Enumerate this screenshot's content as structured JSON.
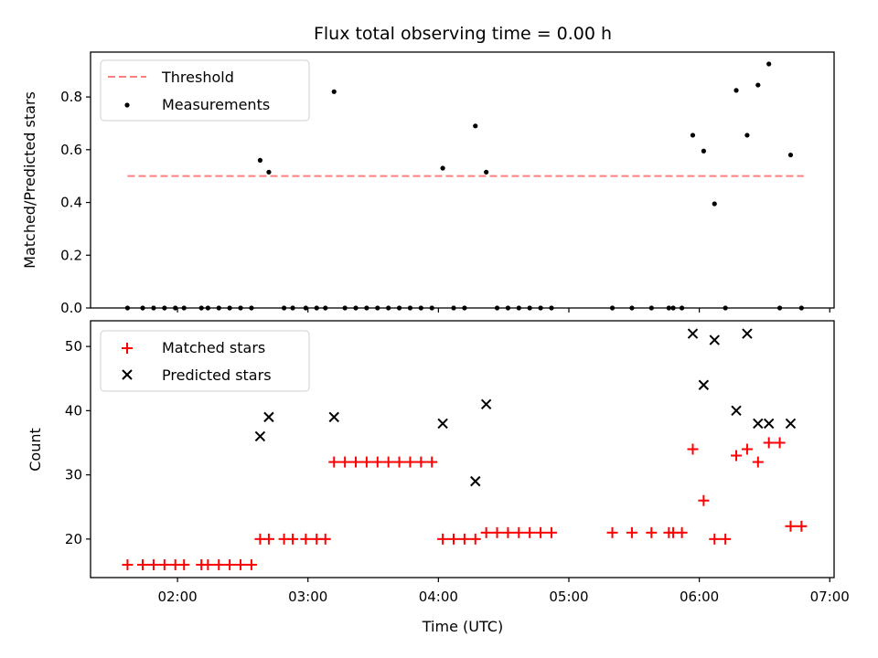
{
  "chart_data": [
    {
      "type": "scatter",
      "title": "Flux total observing time = 0.00 h",
      "ylabel": "Matched/Predicted stars",
      "xlabel": "",
      "ylim": [
        0.0,
        0.97
      ],
      "yticks": [
        "0.0",
        "0.2",
        "0.4",
        "0.6",
        "0.8"
      ],
      "legend_position": "top-left",
      "threshold": {
        "name": "Threshold",
        "value": 0.5,
        "x_range": [
          "01:37",
          "06:48"
        ],
        "color": "#ff7f7f"
      },
      "series": [
        {
          "name": "Measurements",
          "color": "#000000",
          "points": [
            {
              "x": "01:37",
              "y": 0.0
            },
            {
              "x": "01:44",
              "y": 0.0
            },
            {
              "x": "01:49",
              "y": 0.0
            },
            {
              "x": "01:54",
              "y": 0.0
            },
            {
              "x": "01:59",
              "y": 0.0
            },
            {
              "x": "02:03",
              "y": 0.0
            },
            {
              "x": "02:11",
              "y": 0.0
            },
            {
              "x": "02:14",
              "y": 0.0
            },
            {
              "x": "02:19",
              "y": 0.0
            },
            {
              "x": "02:24",
              "y": 0.0
            },
            {
              "x": "02:29",
              "y": 0.0
            },
            {
              "x": "02:34",
              "y": 0.0
            },
            {
              "x": "02:38",
              "y": 0.56
            },
            {
              "x": "02:42",
              "y": 0.515
            },
            {
              "x": "02:49",
              "y": 0.0
            },
            {
              "x": "02:53",
              "y": 0.0
            },
            {
              "x": "02:59",
              "y": 0.0
            },
            {
              "x": "03:04",
              "y": 0.0
            },
            {
              "x": "03:08",
              "y": 0.0
            },
            {
              "x": "03:12",
              "y": 0.82
            },
            {
              "x": "03:17",
              "y": 0.0
            },
            {
              "x": "03:22",
              "y": 0.0
            },
            {
              "x": "03:27",
              "y": 0.0
            },
            {
              "x": "03:32",
              "y": 0.0
            },
            {
              "x": "03:37",
              "y": 0.0
            },
            {
              "x": "03:42",
              "y": 0.0
            },
            {
              "x": "03:47",
              "y": 0.0
            },
            {
              "x": "03:52",
              "y": 0.0
            },
            {
              "x": "03:57",
              "y": 0.0
            },
            {
              "x": "04:02",
              "y": 0.53
            },
            {
              "x": "04:07",
              "y": 0.0
            },
            {
              "x": "04:12",
              "y": 0.0
            },
            {
              "x": "04:17",
              "y": 0.69
            },
            {
              "x": "04:22",
              "y": 0.515
            },
            {
              "x": "04:27",
              "y": 0.0
            },
            {
              "x": "04:32",
              "y": 0.0
            },
            {
              "x": "04:37",
              "y": 0.0
            },
            {
              "x": "04:42",
              "y": 0.0
            },
            {
              "x": "04:47",
              "y": 0.0
            },
            {
              "x": "04:52",
              "y": 0.0
            },
            {
              "x": "05:20",
              "y": 0.0
            },
            {
              "x": "05:29",
              "y": 0.0
            },
            {
              "x": "05:38",
              "y": 0.0
            },
            {
              "x": "05:46",
              "y": 0.0
            },
            {
              "x": "05:48",
              "y": 0.0
            },
            {
              "x": "05:52",
              "y": 0.0
            },
            {
              "x": "05:57",
              "y": 0.655
            },
            {
              "x": "06:02",
              "y": 0.595
            },
            {
              "x": "06:07",
              "y": 0.395
            },
            {
              "x": "06:12",
              "y": 0.0
            },
            {
              "x": "06:17",
              "y": 0.825
            },
            {
              "x": "06:22",
              "y": 0.655
            },
            {
              "x": "06:27",
              "y": 0.845
            },
            {
              "x": "06:32",
              "y": 0.925
            },
            {
              "x": "06:37",
              "y": 0.0
            },
            {
              "x": "06:42",
              "y": 0.58
            },
            {
              "x": "06:47",
              "y": 0.0
            }
          ]
        }
      ]
    },
    {
      "type": "scatter",
      "title": "",
      "ylabel": "Count",
      "xlabel": "Time (UTC)",
      "ylim": [
        14,
        54
      ],
      "yticks": [
        "20",
        "30",
        "40",
        "50"
      ],
      "xlim": [
        "01:20",
        "07:02"
      ],
      "xticks": [
        "02:00",
        "03:00",
        "04:00",
        "05:00",
        "06:00",
        "07:00"
      ],
      "legend_position": "top-left",
      "series": [
        {
          "name": "Matched stars",
          "color": "#ff0000",
          "marker": "plus",
          "points": [
            {
              "x": "01:37",
              "y": 16
            },
            {
              "x": "01:44",
              "y": 16
            },
            {
              "x": "01:49",
              "y": 16
            },
            {
              "x": "01:54",
              "y": 16
            },
            {
              "x": "01:59",
              "y": 16
            },
            {
              "x": "02:03",
              "y": 16
            },
            {
              "x": "02:11",
              "y": 16
            },
            {
              "x": "02:14",
              "y": 16
            },
            {
              "x": "02:19",
              "y": 16
            },
            {
              "x": "02:24",
              "y": 16
            },
            {
              "x": "02:29",
              "y": 16
            },
            {
              "x": "02:34",
              "y": 16
            },
            {
              "x": "02:38",
              "y": 20
            },
            {
              "x": "02:42",
              "y": 20
            },
            {
              "x": "02:49",
              "y": 20
            },
            {
              "x": "02:53",
              "y": 20
            },
            {
              "x": "02:59",
              "y": 20
            },
            {
              "x": "03:04",
              "y": 20
            },
            {
              "x": "03:08",
              "y": 20
            },
            {
              "x": "03:12",
              "y": 32
            },
            {
              "x": "03:17",
              "y": 32
            },
            {
              "x": "03:22",
              "y": 32
            },
            {
              "x": "03:27",
              "y": 32
            },
            {
              "x": "03:32",
              "y": 32
            },
            {
              "x": "03:37",
              "y": 32
            },
            {
              "x": "03:42",
              "y": 32
            },
            {
              "x": "03:47",
              "y": 32
            },
            {
              "x": "03:52",
              "y": 32
            },
            {
              "x": "03:57",
              "y": 32
            },
            {
              "x": "04:02",
              "y": 20
            },
            {
              "x": "04:07",
              "y": 20
            },
            {
              "x": "04:12",
              "y": 20
            },
            {
              "x": "04:17",
              "y": 20
            },
            {
              "x": "04:22",
              "y": 21
            },
            {
              "x": "04:27",
              "y": 21
            },
            {
              "x": "04:32",
              "y": 21
            },
            {
              "x": "04:37",
              "y": 21
            },
            {
              "x": "04:42",
              "y": 21
            },
            {
              "x": "04:47",
              "y": 21
            },
            {
              "x": "04:52",
              "y": 21
            },
            {
              "x": "05:20",
              "y": 21
            },
            {
              "x": "05:29",
              "y": 21
            },
            {
              "x": "05:38",
              "y": 21
            },
            {
              "x": "05:46",
              "y": 21
            },
            {
              "x": "05:48",
              "y": 21
            },
            {
              "x": "05:52",
              "y": 21
            },
            {
              "x": "05:57",
              "y": 34
            },
            {
              "x": "06:02",
              "y": 26
            },
            {
              "x": "06:07",
              "y": 20
            },
            {
              "x": "06:12",
              "y": 20
            },
            {
              "x": "06:17",
              "y": 33
            },
            {
              "x": "06:22",
              "y": 34
            },
            {
              "x": "06:27",
              "y": 32
            },
            {
              "x": "06:32",
              "y": 35
            },
            {
              "x": "06:37",
              "y": 35
            },
            {
              "x": "06:42",
              "y": 22
            },
            {
              "x": "06:47",
              "y": 22
            }
          ]
        },
        {
          "name": "Predicted stars",
          "color": "#000000",
          "marker": "x",
          "points": [
            {
              "x": "02:38",
              "y": 36
            },
            {
              "x": "02:42",
              "y": 39
            },
            {
              "x": "03:12",
              "y": 39
            },
            {
              "x": "04:02",
              "y": 38
            },
            {
              "x": "04:17",
              "y": 29
            },
            {
              "x": "04:22",
              "y": 41
            },
            {
              "x": "05:57",
              "y": 52
            },
            {
              "x": "06:02",
              "y": 44
            },
            {
              "x": "06:07",
              "y": 51
            },
            {
              "x": "06:17",
              "y": 40
            },
            {
              "x": "06:22",
              "y": 52
            },
            {
              "x": "06:27",
              "y": 38
            },
            {
              "x": "06:32",
              "y": 38
            },
            {
              "x": "06:42",
              "y": 38
            }
          ]
        }
      ]
    }
  ]
}
